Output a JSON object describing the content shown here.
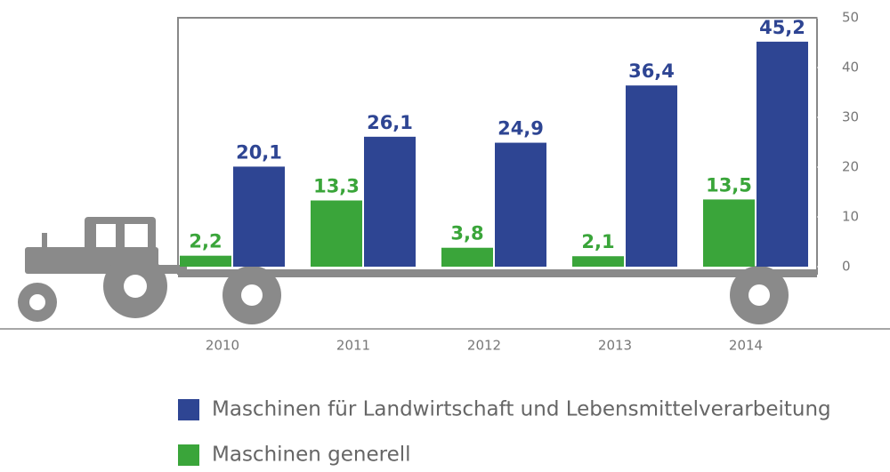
{
  "chart_data": {
    "type": "bar",
    "categories": [
      "2010",
      "2011",
      "2012",
      "2013",
      "2014"
    ],
    "series": [
      {
        "name": "Maschinen für Landwirtschaft und Lebensmittelverarbeitung",
        "color": "#2e4593",
        "values": [
          20.1,
          26.1,
          24.9,
          36.4,
          45.2
        ],
        "value_labels": [
          "20,1",
          "26,1",
          "24,9",
          "36,4",
          "45,2"
        ]
      },
      {
        "name": "Maschinen generell",
        "color": "#3aa53a",
        "values": [
          2.2,
          13.3,
          3.8,
          2.1,
          13.5
        ],
        "value_labels": [
          "2,2",
          "13,3",
          "3,8",
          "2,1",
          "13,5"
        ]
      }
    ],
    "ylim": [
      0,
      50
    ],
    "yticks": [
      0,
      10,
      20,
      30,
      40,
      50
    ]
  }
}
